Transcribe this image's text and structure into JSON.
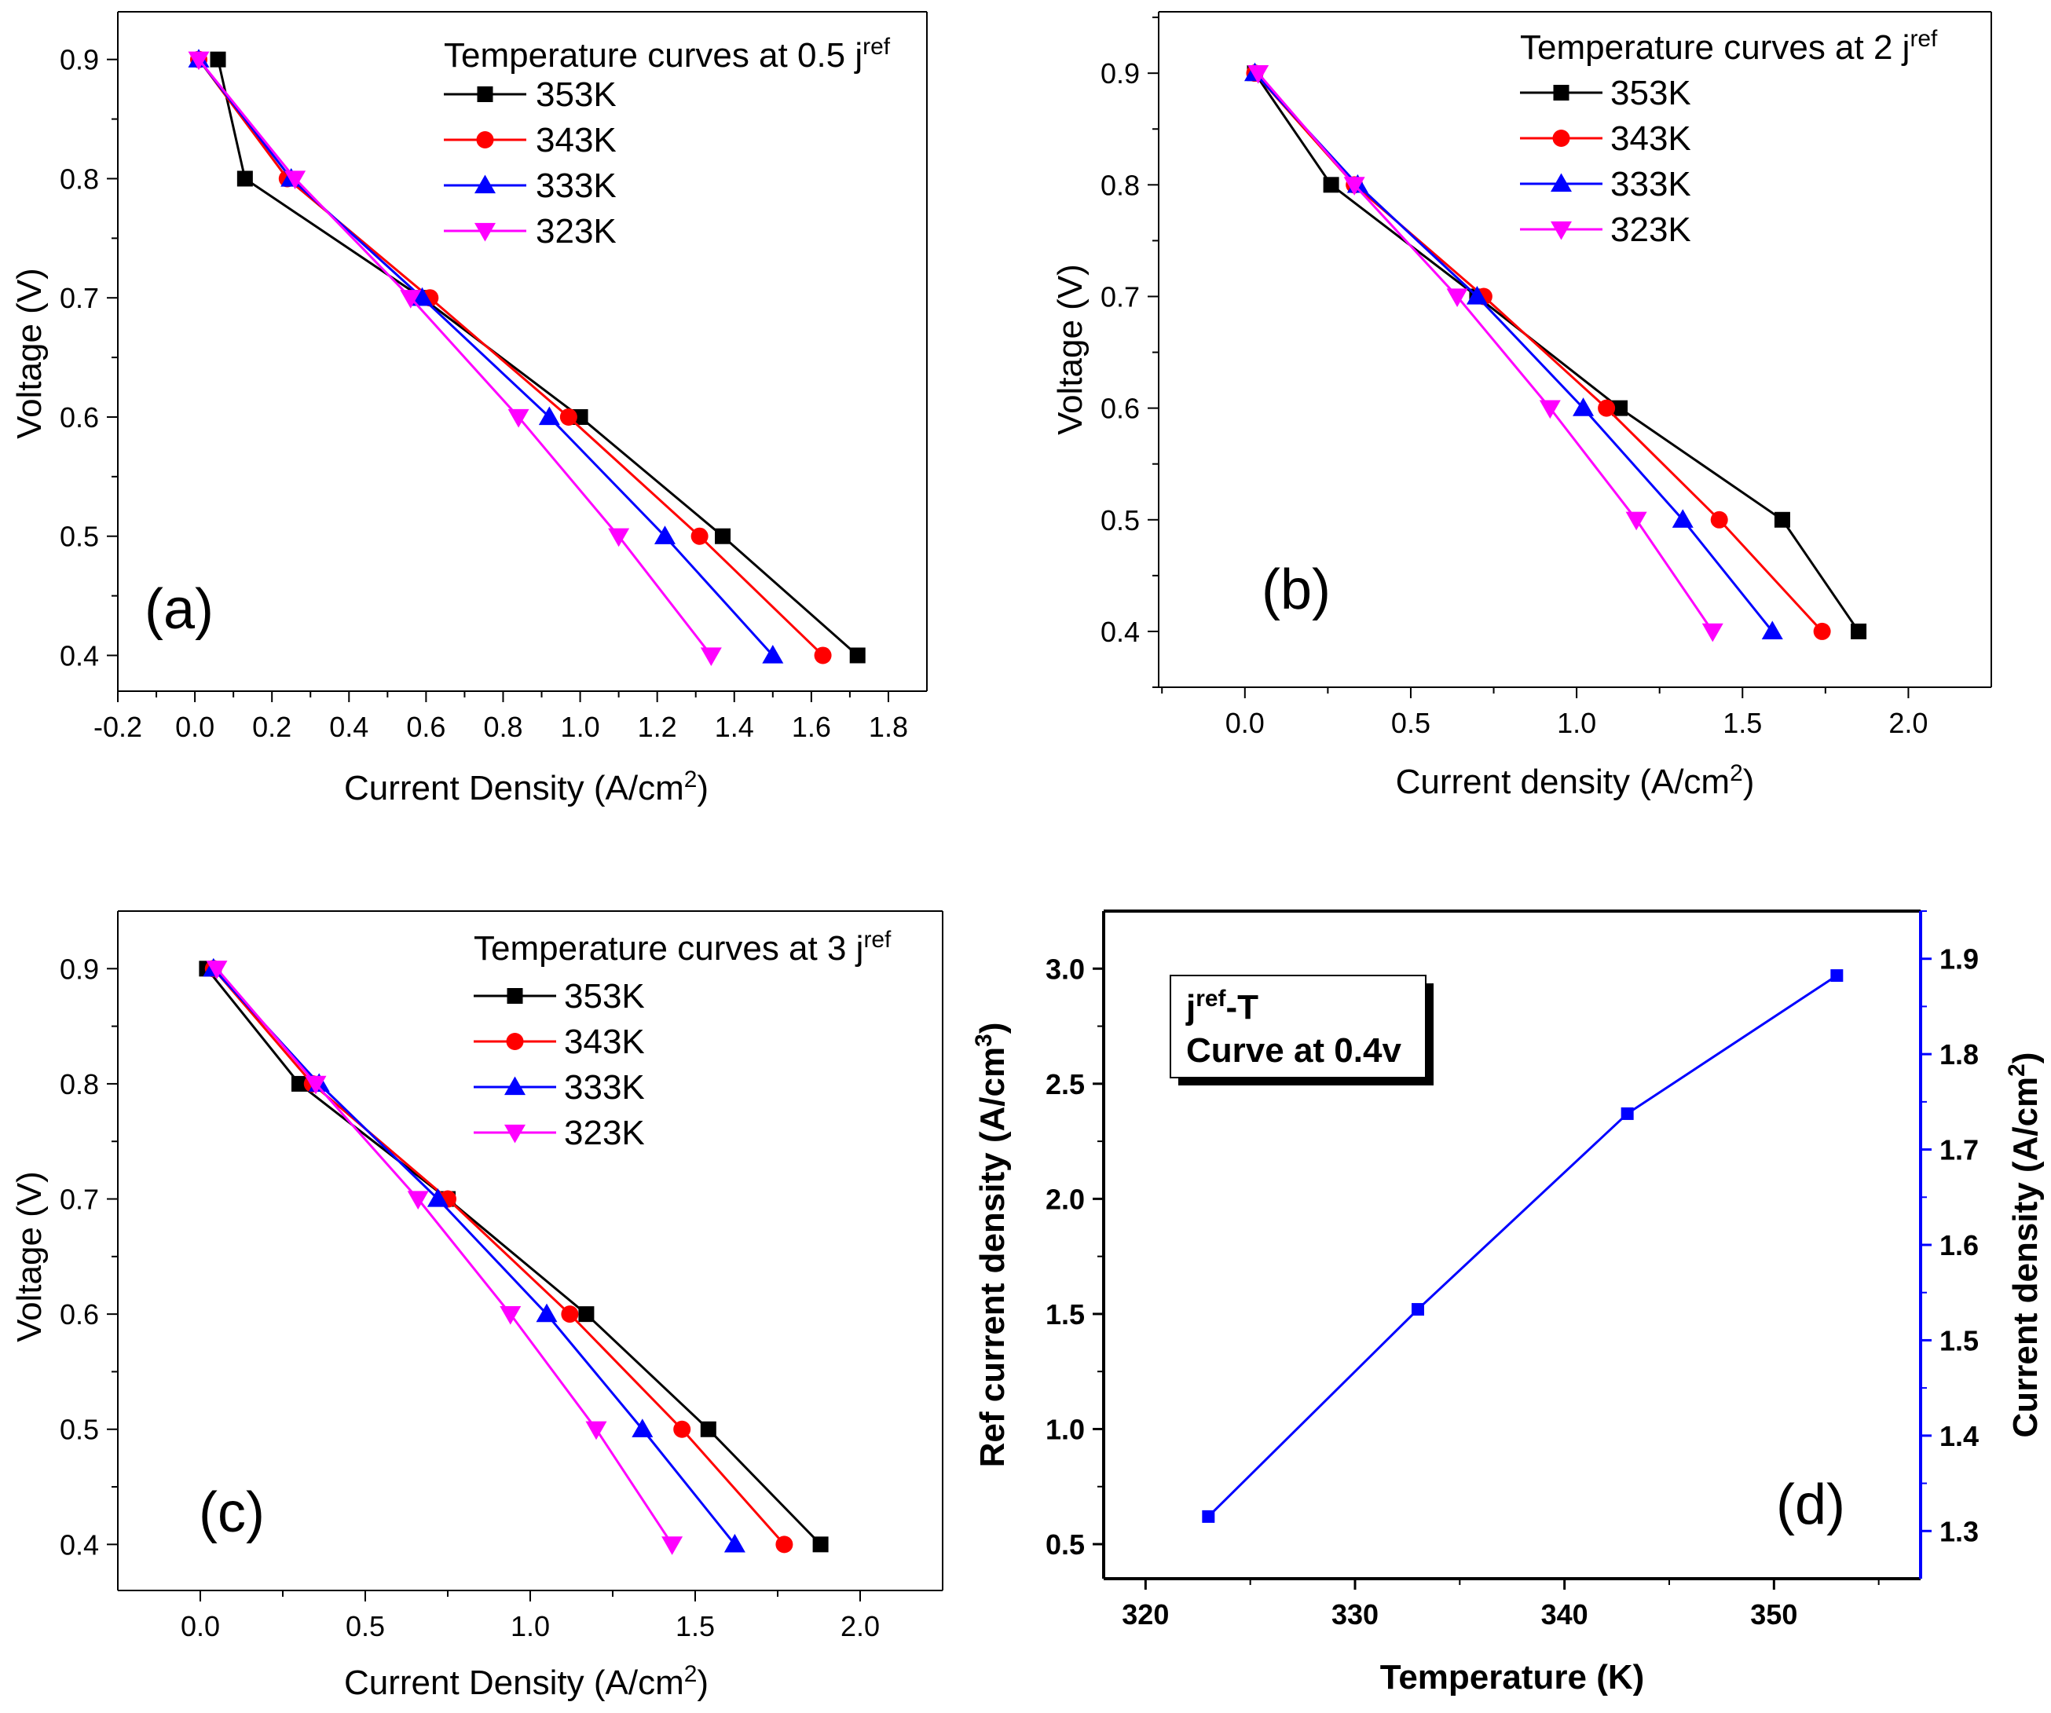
{
  "chart_data": [
    {
      "id": "a",
      "type": "line",
      "panel_label": "(a)",
      "legend_title": "Temperature curves at 0.5 j",
      "legend_title_sup": "ref",
      "xlabel": "Current Density (A/cm",
      "xlabel_sup": "2",
      "xlabel_end": ")",
      "ylabel": "Voltage (V)",
      "xlim": [
        -0.2,
        1.9
      ],
      "ylim": [
        0.37,
        0.94
      ],
      "xticks": [
        "-0.2",
        "0.0",
        "0.2",
        "0.4",
        "0.6",
        "0.8",
        "1.0",
        "1.2",
        "1.4",
        "1.6",
        "1.8"
      ],
      "yticks": [
        "0.4",
        "0.5",
        "0.6",
        "0.7",
        "0.8",
        "0.9"
      ],
      "series": [
        {
          "name": "353K",
          "color": "#000000",
          "marker": "square",
          "x": [
            0.06,
            0.13,
            0.59,
            1.0,
            1.37,
            1.72
          ],
          "y": [
            0.9,
            0.8,
            0.7,
            0.6,
            0.5,
            0.4
          ]
        },
        {
          "name": "343K",
          "color": "#ff0000",
          "marker": "circle",
          "x": [
            0.01,
            0.24,
            0.61,
            0.97,
            1.31,
            1.63
          ],
          "y": [
            0.9,
            0.8,
            0.7,
            0.6,
            0.5,
            0.4
          ]
        },
        {
          "name": "333K",
          "color": "#0000ff",
          "marker": "triangle-up",
          "x": [
            0.01,
            0.25,
            0.59,
            0.92,
            1.22,
            1.5
          ],
          "y": [
            0.9,
            0.8,
            0.7,
            0.6,
            0.5,
            0.4
          ]
        },
        {
          "name": "323K",
          "color": "#ff00ff",
          "marker": "triangle-down",
          "x": [
            0.01,
            0.26,
            0.56,
            0.84,
            1.1,
            1.34
          ],
          "y": [
            0.9,
            0.8,
            0.7,
            0.6,
            0.5,
            0.4
          ]
        }
      ]
    },
    {
      "id": "b",
      "type": "line",
      "panel_label": "(b)",
      "legend_title": "Temperature curves at 2 j",
      "legend_title_sup": "ref",
      "xlabel": "Current density (A/cm",
      "xlabel_sup": "2",
      "xlabel_end": ")",
      "ylabel": "Voltage (V)",
      "xlim": [
        -0.26,
        2.25
      ],
      "ylim": [
        0.35,
        0.955
      ],
      "xticks": [
        "0.0",
        "0.5",
        "1.0",
        "1.5",
        "2.0"
      ],
      "yticks": [
        "0.4",
        "0.5",
        "0.6",
        "0.7",
        "0.8",
        "0.9"
      ],
      "series": [
        {
          "name": "353K",
          "color": "#000000",
          "marker": "square",
          "x": [
            0.03,
            0.26,
            0.7,
            1.13,
            1.62,
            1.85
          ],
          "y": [
            0.9,
            0.8,
            0.7,
            0.6,
            0.5,
            0.4
          ]
        },
        {
          "name": "343K",
          "color": "#ff0000",
          "marker": "circle",
          "x": [
            0.03,
            0.33,
            0.72,
            1.09,
            1.43,
            1.74
          ],
          "y": [
            0.9,
            0.8,
            0.7,
            0.6,
            0.5,
            0.4
          ]
        },
        {
          "name": "333K",
          "color": "#0000ff",
          "marker": "triangle-up",
          "x": [
            0.03,
            0.34,
            0.7,
            1.02,
            1.32,
            1.59
          ],
          "y": [
            0.9,
            0.8,
            0.7,
            0.6,
            0.5,
            0.4
          ]
        },
        {
          "name": "323K",
          "color": "#ff00ff",
          "marker": "triangle-down",
          "x": [
            0.04,
            0.33,
            0.64,
            0.92,
            1.18,
            1.41
          ],
          "y": [
            0.9,
            0.8,
            0.7,
            0.6,
            0.5,
            0.4
          ]
        }
      ]
    },
    {
      "id": "c",
      "type": "line",
      "panel_label": "(c)",
      "legend_title": "Temperature curves at 3 j",
      "legend_title_sup": "ref",
      "xlabel": "Current Density (A/cm",
      "xlabel_sup": "2",
      "xlabel_end": ")",
      "ylabel": "Voltage (V)",
      "xlim": [
        -0.25,
        2.25
      ],
      "ylim": [
        0.36,
        0.95
      ],
      "xticks": [
        "0.0",
        "0.5",
        "1.0",
        "1.5",
        "2.0"
      ],
      "yticks": [
        "0.4",
        "0.5",
        "0.6",
        "0.7",
        "0.8",
        "0.9"
      ],
      "series": [
        {
          "name": "353K",
          "color": "#000000",
          "marker": "square",
          "x": [
            0.02,
            0.3,
            0.75,
            1.17,
            1.54,
            1.88
          ],
          "y": [
            0.9,
            0.8,
            0.7,
            0.6,
            0.5,
            0.4
          ]
        },
        {
          "name": "343K",
          "color": "#ff0000",
          "marker": "circle",
          "x": [
            0.04,
            0.34,
            0.75,
            1.12,
            1.46,
            1.77
          ],
          "y": [
            0.9,
            0.8,
            0.7,
            0.6,
            0.5,
            0.4
          ]
        },
        {
          "name": "333K",
          "color": "#0000ff",
          "marker": "triangle-up",
          "x": [
            0.04,
            0.36,
            0.72,
            1.05,
            1.34,
            1.62
          ],
          "y": [
            0.9,
            0.8,
            0.7,
            0.6,
            0.5,
            0.4
          ]
        },
        {
          "name": "323K",
          "color": "#ff00ff",
          "marker": "triangle-down",
          "x": [
            0.05,
            0.35,
            0.66,
            0.94,
            1.2,
            1.43
          ],
          "y": [
            0.9,
            0.8,
            0.7,
            0.6,
            0.5,
            0.4
          ]
        }
      ]
    },
    {
      "id": "d",
      "type": "line",
      "panel_label": "(d)",
      "legend_title": "j",
      "legend_title_sup": "ref",
      "legend_title_end": "-T",
      "legend_line2": "Curve at 0.4v",
      "xlabel": "Temperature (K)",
      "ylabel": "Ref current density (A/cm",
      "ylabel_sup": "3",
      "ylabel_end": ")",
      "y2label": "Current density (A/cm",
      "y2label_sup": "2",
      "y2label_end": ")",
      "xlim": [
        318,
        357
      ],
      "ylim": [
        0.35,
        3.25
      ],
      "y2lim": [
        1.25,
        1.95
      ],
      "xticks": [
        "320",
        "330",
        "340",
        "350"
      ],
      "yticks": [
        "0.5",
        "1.0",
        "1.5",
        "2.0",
        "2.5",
        "3.0"
      ],
      "y2ticks": [
        "1.3",
        "1.4",
        "1.5",
        "1.6",
        "1.7",
        "1.8",
        "1.9"
      ],
      "axis_color_right": "#0000ff",
      "series": [
        {
          "name": "Ref current density",
          "color": "#0000ff",
          "marker": "square",
          "x": [
            323,
            333,
            343,
            353
          ],
          "y": [
            0.62,
            1.52,
            2.37,
            2.97
          ]
        }
      ]
    }
  ]
}
